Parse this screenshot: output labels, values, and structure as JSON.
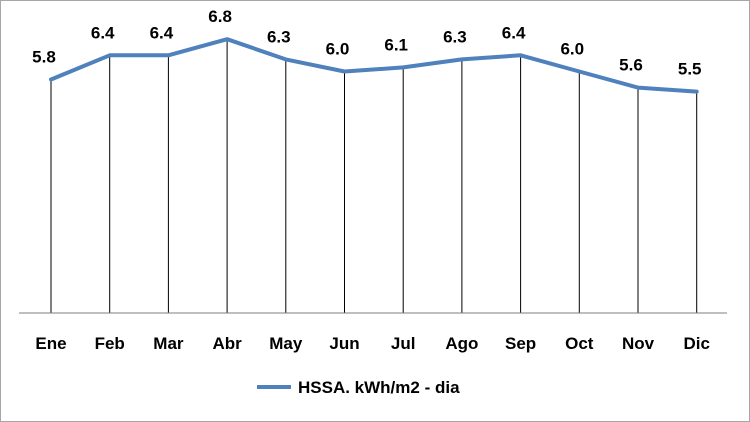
{
  "chart_data": {
    "type": "line",
    "categories": [
      "Ene",
      "Feb",
      "Mar",
      "Abr",
      "May",
      "Jun",
      "Jul",
      "Ago",
      "Sep",
      "Oct",
      "Nov",
      "Dic"
    ],
    "series": [
      {
        "name": "HSSA. kWh/m2 - dia",
        "values": [
          5.8,
          6.4,
          6.4,
          6.8,
          6.3,
          6.0,
          6.1,
          6.3,
          6.4,
          6.0,
          5.6,
          5.5
        ],
        "data_labels": [
          "5.8",
          "6.4",
          "6.4",
          "6.8",
          "6.3",
          "6.0",
          "6.1",
          "6.3",
          "6.4",
          "6.0",
          "5.6",
          "5.5"
        ],
        "color": "#4f81bd"
      }
    ],
    "ylim": [
      0,
      7.75
    ],
    "drop_lines": true,
    "grid": false,
    "legend_position": "bottom",
    "line_color": "#4f81bd",
    "drop_line_color": "#000000",
    "axis_color": "#7f7f7f"
  }
}
